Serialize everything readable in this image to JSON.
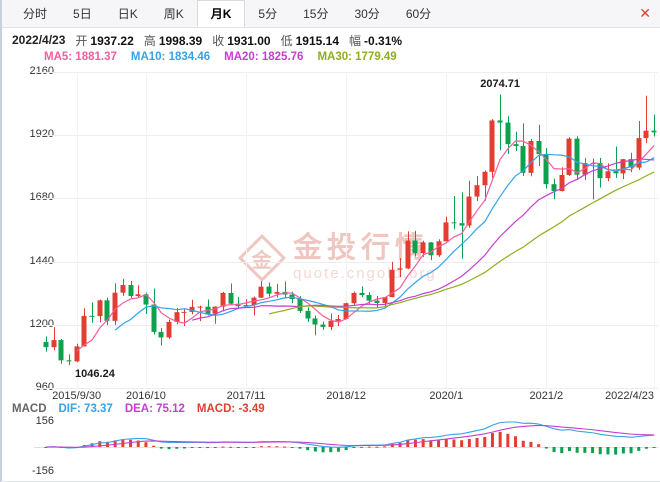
{
  "window": {
    "close_icon": "✕"
  },
  "tabs": {
    "active_id": "month-k",
    "items": [
      {
        "id": "time",
        "label": "分时"
      },
      {
        "id": "5day",
        "label": "5日"
      },
      {
        "id": "day-k",
        "label": "日K"
      },
      {
        "id": "week-k",
        "label": "周K"
      },
      {
        "id": "month-k",
        "label": "月K"
      },
      {
        "id": "5min",
        "label": "5分"
      },
      {
        "id": "15min",
        "label": "15分"
      },
      {
        "id": "30min",
        "label": "30分"
      },
      {
        "id": "60min",
        "label": "60分"
      }
    ]
  },
  "quote_bar": {
    "date": "2022/4/23",
    "fields": [
      {
        "label": "开",
        "value": "1937.22"
      },
      {
        "label": "高",
        "value": "1998.39"
      },
      {
        "label": "收",
        "value": "1931.00"
      },
      {
        "label": "低",
        "value": "1915.14"
      },
      {
        "label": "幅",
        "value": "-0.31%"
      }
    ]
  },
  "ma_legend": [
    {
      "id": "ma5",
      "text": "MA5: 1881.37",
      "color": "#f75c9d",
      "period": 5
    },
    {
      "id": "ma10",
      "text": "MA10: 1834.46",
      "color": "#35a3e8",
      "period": 10
    },
    {
      "id": "ma20",
      "text": "MA20: 1825.76",
      "color": "#c53fd0",
      "period": 20
    },
    {
      "id": "ma30",
      "text": "MA30: 1779.49",
      "color": "#8fae1b",
      "period": 30
    }
  ],
  "macd_legend": [
    {
      "id": "macd-title",
      "text": "MACD",
      "color": "#666666"
    },
    {
      "id": "dif",
      "text": "DIF: 73.37",
      "color": "#35a3e8"
    },
    {
      "id": "dea",
      "text": "DEA: 75.12",
      "color": "#c53fd0"
    },
    {
      "id": "macd-value",
      "text": "MACD: -3.49",
      "color": "#e23d30"
    }
  ],
  "watermark": {
    "logo_char": "金",
    "title": "金投行情",
    "subtitle": "quote.cngold.org"
  },
  "colors": {
    "up": "#e23d30",
    "down": "#0ba14d",
    "dif_color": "#35a3e8",
    "dea_color": "#c53fd0",
    "grid": "#ededf0",
    "vgrid": "#f3f3f6",
    "zero_line": "#dedee3"
  },
  "chart_data": {
    "type": "candlestick",
    "title": "月K (monthly candlestick, gold price)",
    "ylim": [
      960,
      2160
    ],
    "y_ticks": [
      2160,
      1920,
      1680,
      1440,
      1200,
      960
    ],
    "grid": true,
    "x_labels": [
      {
        "text": "2015/9/30",
        "index": 4
      },
      {
        "text": "2016/10",
        "index": 13
      },
      {
        "text": "2017/11",
        "index": 26
      },
      {
        "text": "2018/12",
        "index": 39
      },
      {
        "text": "2020/1",
        "index": 52
      },
      {
        "text": "2021/2",
        "index": 65
      },
      {
        "text": "2022/4/23",
        "index": 79
      }
    ],
    "annotations": [
      {
        "text": "2074.71",
        "index": 59,
        "placement": "above"
      },
      {
        "text": "1046.24",
        "index": 3,
        "placement": "below"
      }
    ],
    "candles": [
      [
        1135,
        1156,
        1098,
        1115
      ],
      [
        1115,
        1191,
        1104,
        1142
      ],
      [
        1142,
        1146,
        1052,
        1065
      ],
      [
        1065,
        1088,
        1046.24,
        1061
      ],
      [
        1061,
        1128,
        1058,
        1118
      ],
      [
        1118,
        1263,
        1117,
        1234
      ],
      [
        1234,
        1285,
        1208,
        1233
      ],
      [
        1233,
        1296,
        1209,
        1293
      ],
      [
        1293,
        1303,
        1199,
        1215
      ],
      [
        1215,
        1358,
        1199,
        1322
      ],
      [
        1322,
        1375,
        1310,
        1351
      ],
      [
        1351,
        1367,
        1302,
        1309
      ],
      [
        1309,
        1350,
        1302,
        1316
      ],
      [
        1316,
        1322,
        1241,
        1277
      ],
      [
        1277,
        1338,
        1163,
        1173
      ],
      [
        1173,
        1188,
        1122,
        1152
      ],
      [
        1152,
        1220,
        1146,
        1211
      ],
      [
        1211,
        1264,
        1202,
        1248
      ],
      [
        1248,
        1261,
        1195,
        1249
      ],
      [
        1249,
        1295,
        1240,
        1268
      ],
      [
        1268,
        1273,
        1214,
        1269
      ],
      [
        1269,
        1296,
        1236,
        1242
      ],
      [
        1242,
        1270,
        1204,
        1269
      ],
      [
        1269,
        1325,
        1251,
        1321
      ],
      [
        1321,
        1357,
        1277,
        1280
      ],
      [
        1280,
        1306,
        1260,
        1271
      ],
      [
        1271,
        1297,
        1265,
        1275
      ],
      [
        1275,
        1307,
        1236,
        1303
      ],
      [
        1303,
        1366,
        1302,
        1345
      ],
      [
        1345,
        1361,
        1307,
        1318
      ],
      [
        1318,
        1356,
        1303,
        1325
      ],
      [
        1325,
        1365,
        1301,
        1315
      ],
      [
        1315,
        1326,
        1282,
        1298
      ],
      [
        1298,
        1309,
        1245,
        1253
      ],
      [
        1253,
        1266,
        1211,
        1224
      ],
      [
        1224,
        1235,
        1160,
        1201
      ],
      [
        1201,
        1212,
        1181,
        1192
      ],
      [
        1192,
        1243,
        1180,
        1215
      ],
      [
        1215,
        1237,
        1195,
        1222
      ],
      [
        1222,
        1284,
        1220,
        1282
      ],
      [
        1282,
        1326,
        1276,
        1321
      ],
      [
        1321,
        1346,
        1304,
        1313
      ],
      [
        1313,
        1324,
        1280,
        1292
      ],
      [
        1292,
        1310,
        1266,
        1283
      ],
      [
        1283,
        1307,
        1266,
        1305
      ],
      [
        1305,
        1439,
        1305,
        1409
      ],
      [
        1409,
        1453,
        1381,
        1414
      ],
      [
        1414,
        1555,
        1412,
        1520
      ],
      [
        1520,
        1557,
        1459,
        1472
      ],
      [
        1472,
        1519,
        1458,
        1513
      ],
      [
        1513,
        1514,
        1445,
        1464
      ],
      [
        1464,
        1525,
        1458,
        1517
      ],
      [
        1517,
        1611,
        1517,
        1589
      ],
      [
        1589,
        1689,
        1563,
        1586
      ],
      [
        1586,
        1703,
        1451,
        1577
      ],
      [
        1577,
        1747,
        1568,
        1687
      ],
      [
        1687,
        1765,
        1670,
        1730
      ],
      [
        1730,
        1786,
        1671,
        1781
      ],
      [
        1781,
        1981,
        1757,
        1976
      ],
      [
        1976,
        2074.71,
        1863,
        1968
      ],
      [
        1968,
        1992,
        1849,
        1886
      ],
      [
        1886,
        1933,
        1860,
        1879
      ],
      [
        1879,
        1965,
        1765,
        1777
      ],
      [
        1777,
        1906,
        1764,
        1898
      ],
      [
        1898,
        1959,
        1803,
        1848
      ],
      [
        1848,
        1871,
        1717,
        1734
      ],
      [
        1734,
        1755,
        1677,
        1708
      ],
      [
        1708,
        1798,
        1706,
        1769
      ],
      [
        1769,
        1912,
        1765,
        1907
      ],
      [
        1907,
        1916,
        1750,
        1770
      ],
      [
        1770,
        1834,
        1750,
        1814
      ],
      [
        1814,
        1831,
        1677,
        1814
      ],
      [
        1814,
        1834,
        1721,
        1757
      ],
      [
        1757,
        1813,
        1745,
        1783
      ],
      [
        1783,
        1877,
        1758,
        1775
      ],
      [
        1775,
        1830,
        1753,
        1829
      ],
      [
        1829,
        1853,
        1780,
        1797
      ],
      [
        1797,
        1974,
        1788,
        1909
      ],
      [
        1909,
        2070,
        1890,
        1937
      ],
      [
        1937.22,
        1998.39,
        1915.14,
        1931.0
      ]
    ],
    "macd": {
      "ylim": [
        -156,
        156
      ],
      "y_ticks": [
        156,
        -156
      ],
      "fast_period": 12,
      "slow_period": 26,
      "signal_period": 9
    }
  }
}
